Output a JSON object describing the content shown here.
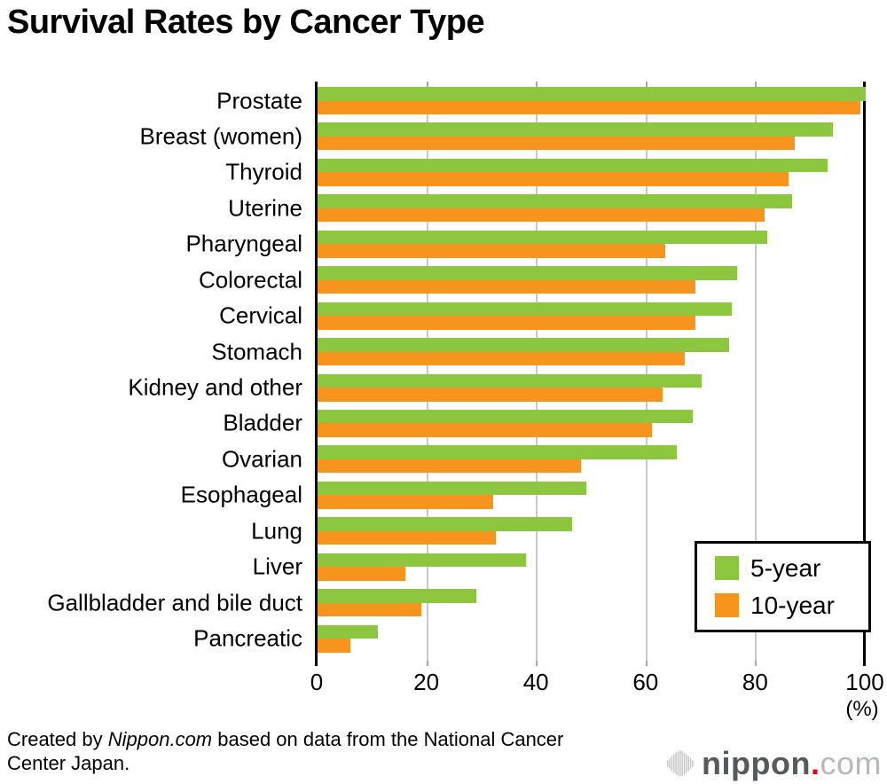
{
  "title": "Survival Rates by Cancer Type",
  "chart_data": {
    "type": "bar",
    "orientation": "horizontal",
    "title": "Survival Rates by Cancer Type",
    "unit_label": "(%)",
    "xlim": [
      0,
      100
    ],
    "x_ticks": [
      0,
      20,
      40,
      60,
      80,
      100
    ],
    "grid": true,
    "legend_position": "bottom-right",
    "categories": [
      "Prostate",
      "Breast (women)",
      "Thyroid",
      "Uterine",
      "Pharyngeal",
      "Colorectal",
      "Cervical",
      "Stomach",
      "Kidney and other",
      "Bladder",
      "Ovarian",
      "Esophageal",
      "Lung",
      "Liver",
      "Gallbladder and bile duct",
      "Pancreatic"
    ],
    "series": [
      {
        "name": "5-year",
        "color": "#8dc63f",
        "values": [
          100,
          94,
          93,
          86.5,
          82,
          76.5,
          75.5,
          75,
          70,
          68.5,
          65.5,
          49,
          46.5,
          38,
          29,
          11
        ]
      },
      {
        "name": "10-year",
        "color": "#f7941e",
        "values": [
          99,
          87,
          86,
          81.5,
          63.5,
          69,
          69,
          67,
          63,
          61,
          48,
          32,
          32.5,
          16,
          19,
          6
        ]
      }
    ]
  },
  "legend": {
    "items": [
      {
        "label": "5-year",
        "color": "#8dc63f"
      },
      {
        "label": "10-year",
        "color": "#f7941e"
      }
    ]
  },
  "footer": {
    "prefix": "Created by ",
    "brand": "Nippon.com",
    "suffix": " based on data from the National Cancer Center Japan."
  },
  "logo": {
    "name": "nippon",
    "dot": ".",
    "tld": "com"
  },
  "colors": {
    "bar_green": "#8dc63f",
    "bar_orange": "#f7941e",
    "gridline": "#c8c8c8",
    "tick": "#a6a6a6",
    "axis": "#000000",
    "logo_red": "#e60012",
    "logo_gray": "#58595b",
    "logo_light_gray": "#b6b8ba",
    "logo_icon_gray": "#c5c6c7"
  }
}
